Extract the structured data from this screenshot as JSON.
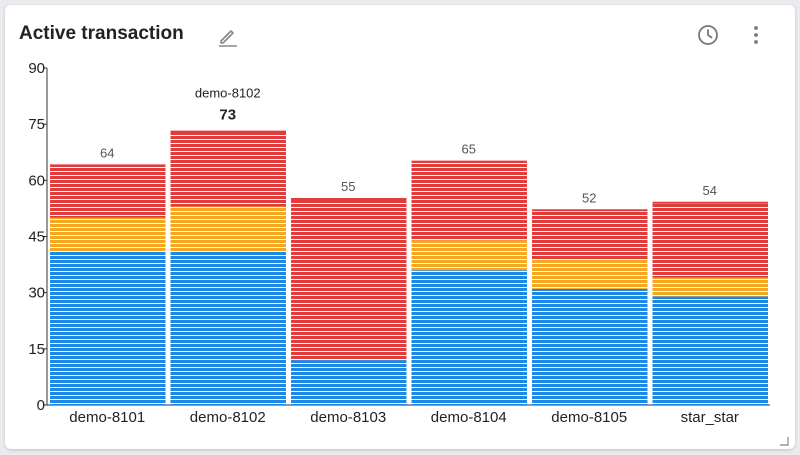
{
  "header": {
    "title": "Active transaction",
    "edit_icon": "pencil-icon",
    "history_icon": "clock-icon",
    "menu_icon": "more-vertical-icon"
  },
  "chart_data": {
    "type": "bar",
    "stacked": true,
    "categories": [
      "demo-8101",
      "demo-8102",
      "demo-8103",
      "demo-8104",
      "demo-8105",
      "star_star"
    ],
    "totals": [
      64,
      73,
      55,
      65,
      52,
      54
    ],
    "series": [
      {
        "color": "#1e88e5",
        "values": [
          41,
          41,
          12,
          36,
          31,
          29
        ]
      },
      {
        "color": "#f5a623",
        "values": [
          9,
          12,
          0,
          8,
          8,
          5
        ]
      },
      {
        "color": "#e03c3c",
        "values": [
          14,
          20,
          43,
          21,
          13,
          20
        ]
      }
    ],
    "ylim": [
      0,
      90
    ],
    "yticks": [
      0,
      15,
      30,
      45,
      60,
      75,
      90
    ],
    "highlight": {
      "index": 1,
      "name": "demo-8102",
      "value": "73"
    }
  }
}
